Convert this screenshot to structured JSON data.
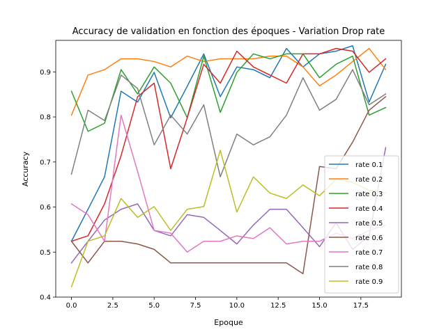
{
  "chart_data": {
    "type": "line",
    "title": "Accuracy de validation en fonction des époques - Variation Drop rate",
    "xlabel": "Epoque",
    "ylabel": "Accuracy",
    "xlim": [
      -0.95,
      19.95
    ],
    "ylim": [
      0.4,
      0.97
    ],
    "xticks": [
      0.0,
      2.5,
      5.0,
      7.5,
      10.0,
      12.5,
      15.0,
      17.5
    ],
    "xtick_labels": [
      "0.0",
      "2.5",
      "5.0",
      "7.5",
      "10.0",
      "12.5",
      "15.0",
      "17.5"
    ],
    "yticks": [
      0.4,
      0.5,
      0.6,
      0.7,
      0.8,
      0.9
    ],
    "ytick_labels": [
      "0.4",
      "0.5",
      "0.6",
      "0.7",
      "0.8",
      "0.9"
    ],
    "grid": false,
    "legend_position": "lower-right",
    "x": [
      0,
      1,
      2,
      3,
      4,
      5,
      6,
      7,
      8,
      9,
      10,
      11,
      12,
      13,
      14,
      15,
      16,
      17,
      18,
      19
    ],
    "series": [
      {
        "name": "rate 0.1",
        "color": "#1f77b4",
        "values": [
          0.524,
          0.595,
          0.667,
          0.857,
          0.833,
          0.899,
          0.798,
          0.868,
          0.94,
          0.845,
          0.911,
          0.905,
          0.887,
          0.952,
          0.911,
          0.94,
          0.946,
          0.958,
          0.833,
          0.917
        ]
      },
      {
        "name": "rate 0.2",
        "color": "#ff7f0e",
        "values": [
          0.804,
          0.893,
          0.905,
          0.929,
          0.929,
          0.923,
          0.911,
          0.935,
          0.923,
          0.929,
          0.929,
          0.929,
          0.935,
          0.935,
          0.911,
          0.869,
          0.893,
          0.923,
          0.952,
          0.905
        ]
      },
      {
        "name": "rate 0.3",
        "color": "#2ca02c",
        "values": [
          0.857,
          0.768,
          0.786,
          0.905,
          0.851,
          0.911,
          0.875,
          0.798,
          0.935,
          0.81,
          0.899,
          0.94,
          0.929,
          0.94,
          0.94,
          0.887,
          0.917,
          0.935,
          0.804,
          0.821
        ]
      },
      {
        "name": "rate 0.4",
        "color": "#d62728",
        "values": [
          0.524,
          0.536,
          0.607,
          0.714,
          0.845,
          0.875,
          0.685,
          0.798,
          0.917,
          0.875,
          0.946,
          0.911,
          0.893,
          0.875,
          0.94,
          0.94,
          0.952,
          0.946,
          0.899,
          0.929
        ]
      },
      {
        "name": "rate 0.5",
        "color": "#9467bd",
        "values": [
          0.476,
          0.524,
          0.571,
          0.595,
          0.607,
          0.548,
          0.536,
          0.583,
          0.577,
          0.548,
          0.518,
          0.56,
          0.595,
          0.595,
          0.554,
          0.512,
          0.565,
          0.506,
          0.536,
          0.732
        ]
      },
      {
        "name": "rate 0.6",
        "color": "#8c564b",
        "values": [
          0.524,
          0.476,
          0.524,
          0.524,
          0.518,
          0.506,
          0.476,
          0.476,
          0.476,
          0.476,
          0.476,
          0.476,
          0.476,
          0.476,
          0.452,
          0.69,
          0.685,
          0.744,
          0.815,
          0.845
        ]
      },
      {
        "name": "rate 0.7",
        "color": "#e377c2",
        "values": [
          0.607,
          0.583,
          0.524,
          0.804,
          0.679,
          0.548,
          0.542,
          0.5,
          0.524,
          0.524,
          0.536,
          0.53,
          0.554,
          0.518,
          0.524,
          0.524,
          0.542,
          0.53,
          0.548,
          0.56
        ]
      },
      {
        "name": "rate 0.8",
        "color": "#7f7f7f",
        "values": [
          0.673,
          0.815,
          0.792,
          0.893,
          0.863,
          0.738,
          0.804,
          0.762,
          0.827,
          0.667,
          0.762,
          0.738,
          0.756,
          0.804,
          0.887,
          0.815,
          0.839,
          0.905,
          0.827,
          0.851
        ]
      },
      {
        "name": "rate 0.9",
        "color": "#bcbd22",
        "values": [
          0.423,
          0.524,
          0.536,
          0.619,
          0.577,
          0.601,
          0.548,
          0.595,
          0.601,
          0.726,
          0.589,
          0.667,
          0.631,
          0.619,
          0.649,
          0.625,
          0.661,
          0.655,
          0.637,
          0.631
        ]
      }
    ]
  }
}
